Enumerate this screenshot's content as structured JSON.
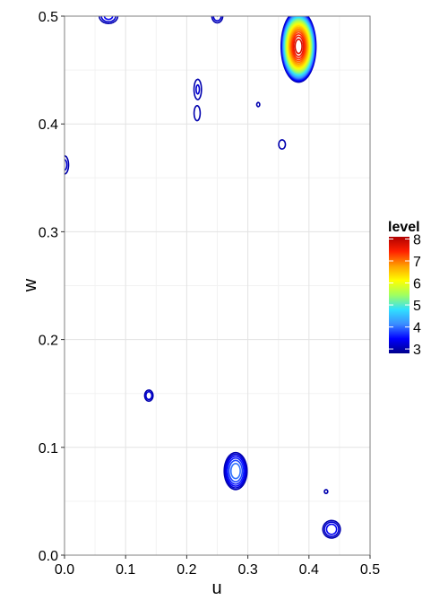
{
  "chart_data": {
    "type": "contour",
    "xlabel": "u",
    "ylabel": "w",
    "xlim": [
      0,
      0.5
    ],
    "ylim": [
      0,
      0.5
    ],
    "x_ticks": [
      "0.0",
      "0.1",
      "0.2",
      "0.3",
      "0.4",
      "0.5"
    ],
    "y_ticks": [
      "0.0",
      "0.1",
      "0.2",
      "0.3",
      "0.4",
      "0.5"
    ],
    "grid": true,
    "legend": {
      "title": "level",
      "position": "right",
      "labels": [
        "8",
        "7",
        "6",
        "5",
        "4",
        "3"
      ],
      "values": [
        8,
        7,
        6,
        5,
        4,
        3
      ],
      "range": [
        2.8,
        8.1
      ],
      "colors": [
        "#00008b",
        "#0000ff",
        "#3b8cff",
        "#30e0ff",
        "#a0ff60",
        "#ffff00",
        "#ffa000",
        "#ff2000",
        "#b00000"
      ]
    },
    "peaks": [
      {
        "u": 0.383,
        "w": 0.472,
        "peak": 8.0,
        "ru": 0.018,
        "rw": 0.021
      },
      {
        "u": 0.28,
        "w": 0.078,
        "peak": 4.2,
        "ru": 0.0175,
        "rw": 0.016
      },
      {
        "u": 0.072,
        "w": 0.5,
        "peak": 3.5,
        "ru": 0.02,
        "rw": 0.009
      },
      {
        "u": 0.25,
        "w": 0.5,
        "peak": 3.4,
        "ru": 0.013,
        "rw": 0.009
      },
      {
        "u": 0.218,
        "w": 0.432,
        "peak": 3.25,
        "ru": 0.011,
        "rw": 0.017
      },
      {
        "u": 0.217,
        "w": 0.41,
        "peak": 3.2,
        "ru": 0.01,
        "rw": 0.014
      },
      {
        "u": 0.437,
        "w": 0.024,
        "peak": 3.6,
        "ru": 0.0175,
        "rw": 0.01
      },
      {
        "u": 0.138,
        "w": 0.148,
        "peak": 3.4,
        "ru": 0.01,
        "rw": 0.0075
      },
      {
        "u": 0.356,
        "w": 0.381,
        "peak": 3.2,
        "ru": 0.011,
        "rw": 0.0085
      },
      {
        "u": 0.317,
        "w": 0.418,
        "peak": 3.1,
        "ru": 0.007,
        "rw": 0.0055
      },
      {
        "u": 0.428,
        "w": 0.059,
        "peak": 3.1,
        "ru": 0.008,
        "rw": 0.005
      },
      {
        "u": 0.0,
        "w": 0.362,
        "peak": 3.3,
        "ru": 0.011,
        "rw": 0.014
      },
      {
        "u": 0.377,
        "w": 0.51,
        "peak": 3.6,
        "ru": 0.009,
        "rw": 0.03
      }
    ]
  }
}
